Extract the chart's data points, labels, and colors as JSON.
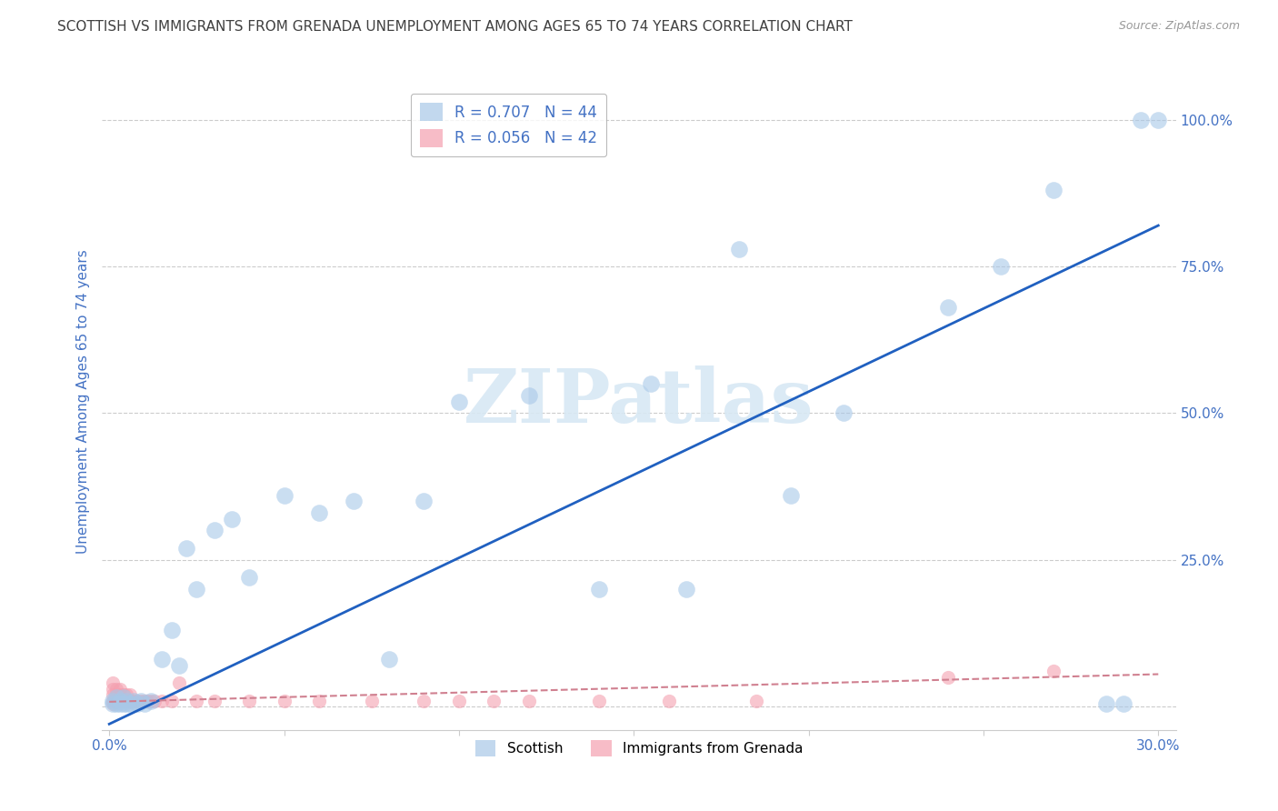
{
  "title": "SCOTTISH VS IMMIGRANTS FROM GRENADA UNEMPLOYMENT AMONG AGES 65 TO 74 YEARS CORRELATION CHART",
  "source": "Source: ZipAtlas.com",
  "ylabel": "Unemployment Among Ages 65 to 74 years",
  "xlim": [
    -0.002,
    0.305
  ],
  "ylim": [
    -0.04,
    1.08
  ],
  "x_ticks": [
    0.0,
    0.05,
    0.1,
    0.15,
    0.2,
    0.25,
    0.3
  ],
  "x_tick_labels": [
    "0.0%",
    "",
    "",
    "",
    "",
    "",
    "30.0%"
  ],
  "y_ticks": [
    0.0,
    0.25,
    0.5,
    0.75,
    1.0
  ],
  "y_tick_labels": [
    "",
    "25.0%",
    "50.0%",
    "75.0%",
    "100.0%"
  ],
  "scottish_x": [
    0.001,
    0.001,
    0.002,
    0.002,
    0.003,
    0.003,
    0.004,
    0.004,
    0.005,
    0.005,
    0.006,
    0.007,
    0.008,
    0.009,
    0.01,
    0.012,
    0.015,
    0.018,
    0.02,
    0.022,
    0.025,
    0.03,
    0.035,
    0.04,
    0.05,
    0.06,
    0.07,
    0.08,
    0.09,
    0.1,
    0.12,
    0.14,
    0.155,
    0.165,
    0.18,
    0.195,
    0.21,
    0.24,
    0.255,
    0.27,
    0.285,
    0.29,
    0.295,
    0.3
  ],
  "scottish_y": [
    0.005,
    0.01,
    0.005,
    0.015,
    0.005,
    0.01,
    0.005,
    0.015,
    0.005,
    0.01,
    0.005,
    0.01,
    0.005,
    0.01,
    0.005,
    0.01,
    0.08,
    0.13,
    0.07,
    0.27,
    0.2,
    0.3,
    0.32,
    0.22,
    0.36,
    0.33,
    0.35,
    0.08,
    0.35,
    0.52,
    0.53,
    0.2,
    0.55,
    0.2,
    0.78,
    0.36,
    0.5,
    0.68,
    0.75,
    0.88,
    0.005,
    0.005,
    1.0,
    1.0
  ],
  "grenada_x": [
    0.001,
    0.001,
    0.001,
    0.001,
    0.001,
    0.002,
    0.002,
    0.002,
    0.003,
    0.003,
    0.003,
    0.004,
    0.004,
    0.005,
    0.005,
    0.006,
    0.006,
    0.007,
    0.008,
    0.009,
    0.01,
    0.011,
    0.012,
    0.013,
    0.015,
    0.018,
    0.02,
    0.025,
    0.03,
    0.04,
    0.05,
    0.06,
    0.075,
    0.09,
    0.1,
    0.11,
    0.12,
    0.14,
    0.16,
    0.185,
    0.24,
    0.27
  ],
  "grenada_y": [
    0.01,
    0.02,
    0.03,
    0.04,
    0.005,
    0.01,
    0.02,
    0.03,
    0.01,
    0.02,
    0.03,
    0.01,
    0.02,
    0.01,
    0.02,
    0.01,
    0.02,
    0.01,
    0.01,
    0.01,
    0.01,
    0.01,
    0.01,
    0.01,
    0.01,
    0.01,
    0.04,
    0.01,
    0.01,
    0.01,
    0.01,
    0.01,
    0.01,
    0.01,
    0.01,
    0.01,
    0.01,
    0.01,
    0.01,
    0.01,
    0.05,
    0.06
  ],
  "scottish_color": "#a8c8e8",
  "grenada_color": "#f4a0b0",
  "trendline_scottish_color": "#2060c0",
  "trendline_grenada_color": "#d08090",
  "background_color": "#ffffff",
  "grid_color": "#cccccc",
  "title_color": "#404040",
  "axis_label_color": "#4472c4",
  "tick_label_color": "#4472c4",
  "legend_label_color": "#4472c4",
  "watermark_text": "ZIPatlas",
  "watermark_color": "#d8e8f4",
  "scottish_trendline_x0": 0.0,
  "scottish_trendline_y0": -0.03,
  "scottish_trendline_x1": 0.3,
  "scottish_trendline_y1": 0.82,
  "grenada_trendline_x0": 0.0,
  "grenada_trendline_y0": 0.008,
  "grenada_trendline_x1": 0.3,
  "grenada_trendline_y1": 0.055
}
